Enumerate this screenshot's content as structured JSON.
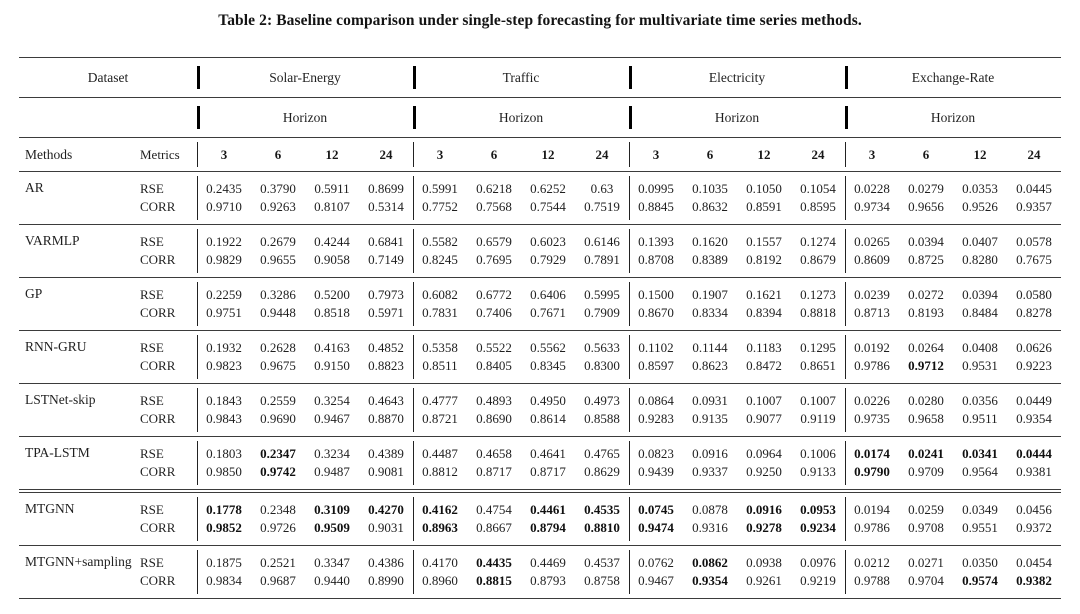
{
  "title": "Table 2: Baseline comparison under single-step forecasting for multivariate time series methods.",
  "header": {
    "dataset_label": "Dataset",
    "groups": [
      "Solar-Energy",
      "Traffic",
      "Electricity",
      "Exchange-Rate"
    ],
    "horizon_label": "Horizon",
    "methods_label": "Methods",
    "metrics_label": "Metrics",
    "horizons": [
      "3",
      "6",
      "12",
      "24"
    ]
  },
  "metrics": [
    "RSE",
    "CORR"
  ],
  "bold_marker": "*",
  "colors": {
    "text": "#1f1f1f",
    "rule": "#3b3b3b",
    "background": "#ffffff"
  },
  "rows": [
    {
      "method": "AR",
      "rse": [
        "0.2435",
        "0.3790",
        "0.5911",
        "0.8699",
        "0.5991",
        "0.6218",
        "0.6252",
        "0.63",
        "0.0995",
        "0.1035",
        "0.1050",
        "0.1054",
        "0.0228",
        "0.0279",
        "0.0353",
        "0.0445"
      ],
      "corr": [
        "0.9710",
        "0.9263",
        "0.8107",
        "0.5314",
        "0.7752",
        "0.7568",
        "0.7544",
        "0.7519",
        "0.8845",
        "0.8632",
        "0.8591",
        "0.8595",
        "0.9734",
        "0.9656",
        "0.9526",
        "0.9357"
      ]
    },
    {
      "method": "VARMLP",
      "rse": [
        "0.1922",
        "0.2679",
        "0.4244",
        "0.6841",
        "0.5582",
        "0.6579",
        "0.6023",
        "0.6146",
        "0.1393",
        "0.1620",
        "0.1557",
        "0.1274",
        "0.0265",
        "0.0394",
        "0.0407",
        "0.0578"
      ],
      "corr": [
        "0.9829",
        "0.9655",
        "0.9058",
        "0.7149",
        "0.8245",
        "0.7695",
        "0.7929",
        "0.7891",
        "0.8708",
        "0.8389",
        "0.8192",
        "0.8679",
        "0.8609",
        "0.8725",
        "0.8280",
        "0.7675"
      ]
    },
    {
      "method": "GP",
      "rse": [
        "0.2259",
        "0.3286",
        "0.5200",
        "0.7973",
        "0.6082",
        "0.6772",
        "0.6406",
        "0.5995",
        "0.1500",
        "0.1907",
        "0.1621",
        "0.1273",
        "0.0239",
        "0.0272",
        "0.0394",
        "0.0580"
      ],
      "corr": [
        "0.9751",
        "0.9448",
        "0.8518",
        "0.5971",
        "0.7831",
        "0.7406",
        "0.7671",
        "0.7909",
        "0.8670",
        "0.8334",
        "0.8394",
        "0.8818",
        "0.8713",
        "0.8193",
        "0.8484",
        "0.8278"
      ]
    },
    {
      "method": "RNN-GRU",
      "rse": [
        "0.1932",
        "0.2628",
        "0.4163",
        "0.4852",
        "0.5358",
        "0.5522",
        "0.5562",
        "0.5633",
        "0.1102",
        "0.1144",
        "0.1183",
        "0.1295",
        "0.0192",
        "0.0264",
        "0.0408",
        "0.0626"
      ],
      "corr": [
        "0.9823",
        "0.9675",
        "0.9150",
        "0.8823",
        "0.8511",
        "0.8405",
        "0.8345",
        "0.8300",
        "0.8597",
        "0.8623",
        "0.8472",
        "0.8651",
        "0.9786",
        "*0.9712",
        "0.9531",
        "0.9223"
      ]
    },
    {
      "method": "LSTNet-skip",
      "rse": [
        "0.1843",
        "0.2559",
        "0.3254",
        "0.4643",
        "0.4777",
        "0.4893",
        "0.4950",
        "0.4973",
        "0.0864",
        "0.0931",
        "0.1007",
        "0.1007",
        "0.0226",
        "0.0280",
        "0.0356",
        "0.0449"
      ],
      "corr": [
        "0.9843",
        "0.9690",
        "0.9467",
        "0.8870",
        "0.8721",
        "0.8690",
        "0.8614",
        "0.8588",
        "0.9283",
        "0.9135",
        "0.9077",
        "0.9119",
        "0.9735",
        "0.9658",
        "0.9511",
        "0.9354"
      ]
    },
    {
      "method": "TPA-LSTM",
      "rse": [
        "0.1803",
        "*0.2347",
        "0.3234",
        "0.4389",
        "0.4487",
        "0.4658",
        "0.4641",
        "0.4765",
        "0.0823",
        "0.0916",
        "0.0964",
        "0.1006",
        "*0.0174",
        "*0.0241",
        "*0.0341",
        "*0.0444"
      ],
      "corr": [
        "0.9850",
        "*0.9742",
        "0.9487",
        "0.9081",
        "0.8812",
        "0.8717",
        "0.8717",
        "0.8629",
        "0.9439",
        "0.9337",
        "0.9250",
        "0.9133",
        "*0.9790",
        "0.9709",
        "0.9564",
        "0.9381"
      ]
    },
    {
      "method": "MTGNN",
      "sep": "double",
      "rse": [
        "*0.1778",
        "0.2348",
        "*0.3109",
        "*0.4270",
        "*0.4162",
        "0.4754",
        "*0.4461",
        "*0.4535",
        "*0.0745",
        "0.0878",
        "*0.0916",
        "*0.0953",
        "0.0194",
        "0.0259",
        "0.0349",
        "0.0456"
      ],
      "corr": [
        "*0.9852",
        "0.9726",
        "*0.9509",
        "0.9031",
        "*0.8963",
        "0.8667",
        "*0.8794",
        "*0.8810",
        "*0.9474",
        "0.9316",
        "*0.9278",
        "*0.9234",
        "0.9786",
        "0.9708",
        "0.9551",
        "0.9372"
      ]
    },
    {
      "method": "MTGNN+sampling",
      "rse": [
        "0.1875",
        "0.2521",
        "0.3347",
        "0.4386",
        "0.4170",
        "*0.4435",
        "0.4469",
        "0.4537",
        "0.0762",
        "*0.0862",
        "0.0938",
        "0.0976",
        "0.0212",
        "0.0271",
        "0.0350",
        "0.0454"
      ],
      "corr": [
        "0.9834",
        "0.9687",
        "0.9440",
        "0.8990",
        "0.8960",
        "*0.8815",
        "0.8793",
        "0.8758",
        "0.9467",
        "*0.9354",
        "0.9261",
        "0.9219",
        "0.9788",
        "0.9704",
        "*0.9574",
        "*0.9382"
      ]
    }
  ]
}
